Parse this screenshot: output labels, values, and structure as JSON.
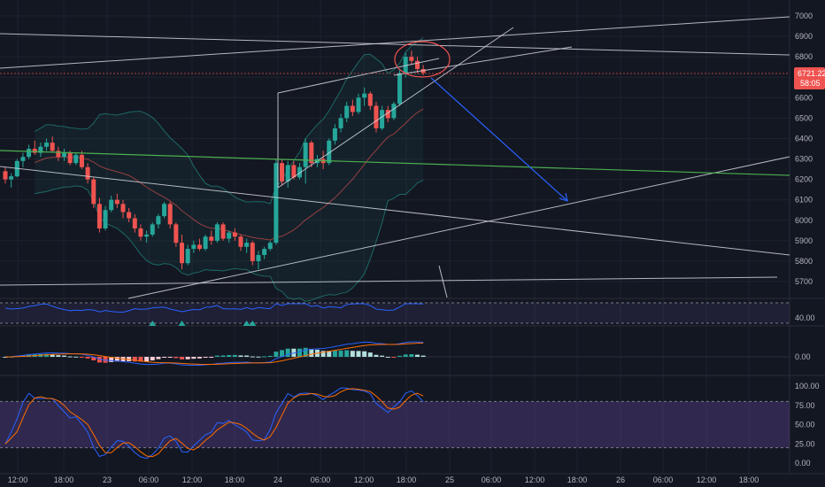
{
  "chart_data": [
    {
      "type": "candlestick",
      "pane": "price",
      "yaxis": {
        "ticks": [
          7000,
          6900,
          6800,
          6700,
          6600,
          6500,
          6400,
          6300,
          6200,
          6100,
          6000,
          5900,
          5800,
          5700
        ]
      },
      "xaxis": {
        "ticks": [
          "12:00",
          "18:00",
          "23",
          "06:00",
          "12:00",
          "18:00",
          "24",
          "06:00",
          "12:00",
          "18:00",
          "25",
          "06:00",
          "12:00",
          "18:00",
          "26",
          "06:00",
          "12:00",
          "18:00"
        ]
      },
      "last_price": "6721.22",
      "countdown": "58:05",
      "candles": [
        [
          6240,
          6260,
          6180,
          6200
        ],
        [
          6200,
          6230,
          6160,
          6215
        ],
        [
          6215,
          6300,
          6210,
          6290
        ],
        [
          6290,
          6330,
          6260,
          6310
        ],
        [
          6310,
          6370,
          6300,
          6350
        ],
        [
          6350,
          6390,
          6320,
          6330
        ],
        [
          6330,
          6380,
          6310,
          6360
        ],
        [
          6360,
          6400,
          6340,
          6380
        ],
        [
          6380,
          6410,
          6330,
          6340
        ],
        [
          6340,
          6360,
          6290,
          6310
        ],
        [
          6310,
          6350,
          6290,
          6330
        ],
        [
          6330,
          6340,
          6270,
          6280
        ],
        [
          6280,
          6330,
          6270,
          6320
        ],
        [
          6320,
          6340,
          6250,
          6260
        ],
        [
          6260,
          6280,
          6180,
          6200
        ],
        [
          6200,
          6210,
          6060,
          6080
        ],
        [
          6080,
          6110,
          5940,
          5960
        ],
        [
          5960,
          6070,
          5950,
          6050
        ],
        [
          6050,
          6120,
          6040,
          6100
        ],
        [
          6100,
          6130,
          6060,
          6080
        ],
        [
          6080,
          6100,
          6010,
          6040
        ],
        [
          6040,
          6060,
          5990,
          6010
        ],
        [
          6010,
          6030,
          5940,
          5960
        ],
        [
          5960,
          5980,
          5900,
          5920
        ],
        [
          5920,
          5950,
          5890,
          5930
        ],
        [
          5930,
          5990,
          5920,
          5980
        ],
        [
          5980,
          6030,
          5960,
          6020
        ],
        [
          6020,
          6090,
          6010,
          6080
        ],
        [
          6080,
          6090,
          5960,
          5980
        ],
        [
          5980,
          5990,
          5870,
          5890
        ],
        [
          5890,
          5930,
          5760,
          5790
        ],
        [
          5790,
          5880,
          5780,
          5860
        ],
        [
          5860,
          5900,
          5840,
          5880
        ],
        [
          5880,
          5910,
          5850,
          5860
        ],
        [
          5860,
          5930,
          5850,
          5920
        ],
        [
          5920,
          5950,
          5880,
          5900
        ],
        [
          5900,
          5990,
          5890,
          5980
        ],
        [
          5980,
          5990,
          5900,
          5910
        ],
        [
          5910,
          5950,
          5890,
          5940
        ],
        [
          5940,
          5960,
          5900,
          5920
        ],
        [
          5920,
          5930,
          5850,
          5870
        ],
        [
          5870,
          5910,
          5840,
          5890
        ],
        [
          5890,
          5900,
          5780,
          5800
        ],
        [
          5800,
          5850,
          5760,
          5830
        ],
        [
          5830,
          5870,
          5810,
          5860
        ],
        [
          5860,
          5900,
          5850,
          5890
        ],
        [
          5890,
          6300,
          5880,
          6280
        ],
        [
          6280,
          6300,
          6170,
          6190
        ],
        [
          6190,
          6290,
          6160,
          6270
        ],
        [
          6270,
          6290,
          6200,
          6210
        ],
        [
          6210,
          6280,
          6200,
          6260
        ],
        [
          6260,
          6400,
          6180,
          6380
        ],
        [
          6380,
          6390,
          6260,
          6280
        ],
        [
          6280,
          6320,
          6260,
          6300
        ],
        [
          6300,
          6340,
          6250,
          6280
        ],
        [
          6280,
          6400,
          6270,
          6390
        ],
        [
          6390,
          6470,
          6370,
          6450
        ],
        [
          6450,
          6520,
          6430,
          6500
        ],
        [
          6500,
          6580,
          6480,
          6560
        ],
        [
          6560,
          6590,
          6510,
          6530
        ],
        [
          6530,
          6620,
          6520,
          6600
        ],
        [
          6600,
          6650,
          6560,
          6620
        ],
        [
          6620,
          6630,
          6540,
          6560
        ],
        [
          6560,
          6580,
          6430,
          6450
        ],
        [
          6450,
          6560,
          6440,
          6540
        ],
        [
          6540,
          6560,
          6480,
          6500
        ],
        [
          6500,
          6580,
          6490,
          6570
        ],
        [
          6570,
          6740,
          6560,
          6720
        ],
        [
          6720,
          6820,
          6700,
          6800
        ],
        [
          6800,
          6830,
          6760,
          6780
        ],
        [
          6780,
          6800,
          6720,
          6740
        ],
        [
          6740,
          6760,
          6710,
          6721.22
        ]
      ],
      "bollinger_bands": true,
      "moving_average": true,
      "colors": {
        "up": "#26a69a",
        "down": "#ef5350",
        "trendline": "#d1d4dc",
        "green_line": "#4caf50",
        "projection": "#2962ff",
        "highlight_circle": "#ef5350",
        "last_price_tag": "#ef5350"
      }
    },
    {
      "type": "line",
      "pane": "oscillator-1",
      "yaxis": {
        "ticks": [
          "40.00"
        ]
      },
      "signal_markers": 4
    },
    {
      "type": "histogram",
      "pane": "macd",
      "yaxis": {
        "ticks": [
          "0.00"
        ]
      },
      "series": [
        "macd",
        "signal",
        "histogram"
      ]
    },
    {
      "type": "line",
      "pane": "stochastic",
      "yaxis": {
        "ticks": [
          "100.00",
          "75.00",
          "50.00",
          "25.00",
          "0.00"
        ],
        "band": [
          20,
          80
        ]
      },
      "series": [
        "%K",
        "%D"
      ]
    }
  ]
}
